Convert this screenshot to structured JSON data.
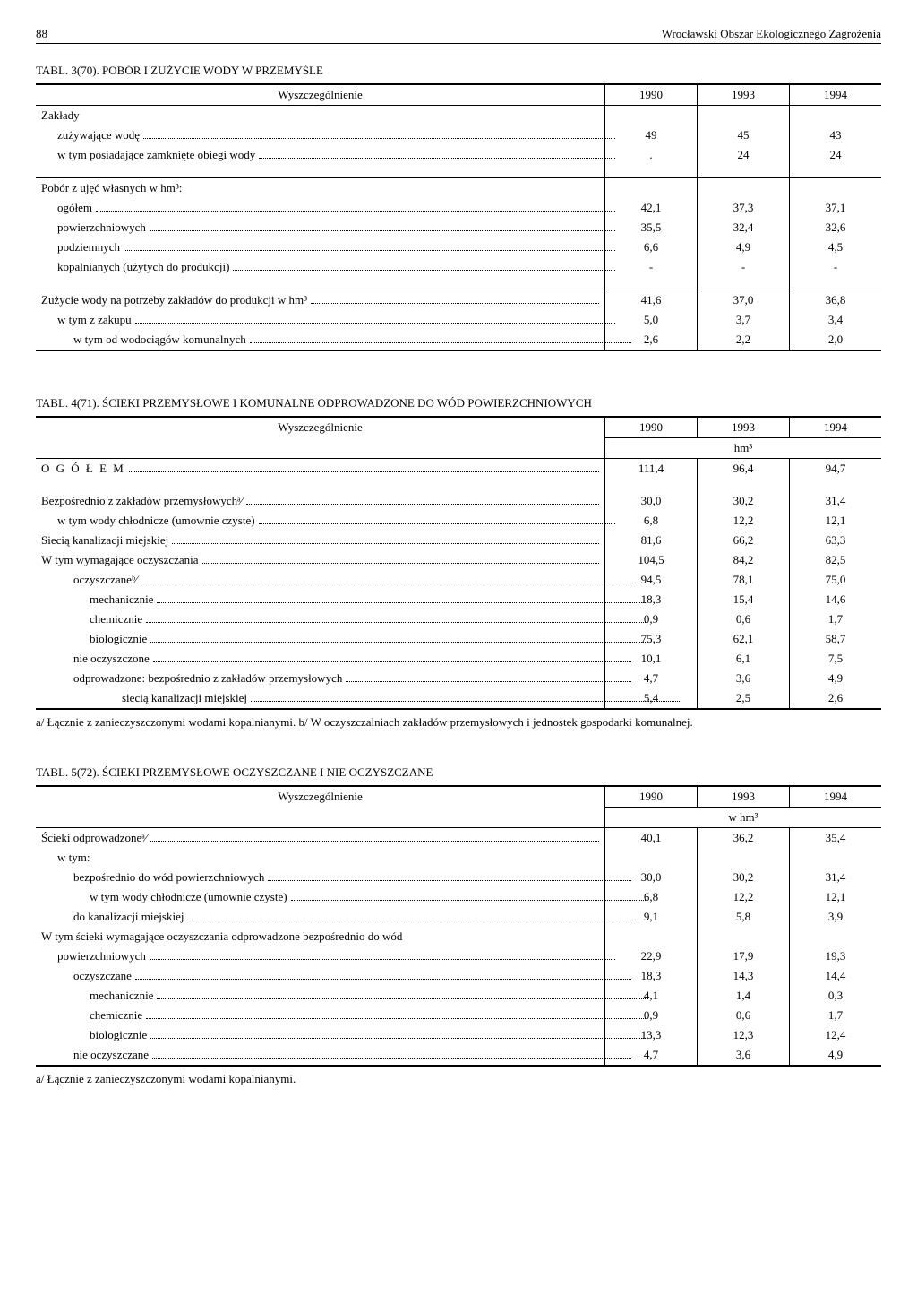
{
  "header": {
    "page_num": "88",
    "title": "Wrocławski Obszar Ekologicznego Zagrożenia"
  },
  "table1": {
    "caption": "TABL. 3(70). POBÓR I ZUŻYCIE WODY W PRZEMYŚLE",
    "col_label": "Wyszczególnienie",
    "years": [
      "1990",
      "1993",
      "1994"
    ],
    "rows": [
      {
        "label": "Zakłady",
        "indent": 0,
        "vals": [
          "",
          "",
          ""
        ],
        "nodots": true
      },
      {
        "label": "zużywające wodę",
        "indent": 1,
        "vals": [
          "49",
          "45",
          "43"
        ]
      },
      {
        "label": "w tym posiadające zamknięte obiegi wody",
        "indent": 1,
        "vals": [
          ".",
          "24",
          "24"
        ]
      },
      {
        "spacer": true
      },
      {
        "label": "Pobór z ujęć własnych w hm³:",
        "indent": 0,
        "vals": [
          "",
          "",
          ""
        ],
        "nodots": true,
        "section": true
      },
      {
        "label": "ogółem",
        "indent": 1,
        "vals": [
          "42,1",
          "37,3",
          "37,1"
        ]
      },
      {
        "label": "powierzchniowych",
        "indent": 1,
        "vals": [
          "35,5",
          "32,4",
          "32,6"
        ]
      },
      {
        "label": "podziemnych",
        "indent": 1,
        "vals": [
          "6,6",
          "4,9",
          "4,5"
        ]
      },
      {
        "label": "kopalnianych (użytych do produkcji)",
        "indent": 1,
        "vals": [
          "-",
          "-",
          "-"
        ]
      },
      {
        "spacer": true
      },
      {
        "label": "Zużycie wody na potrzeby zakładów do produkcji w hm³",
        "indent": 0,
        "vals": [
          "41,6",
          "37,0",
          "36,8"
        ],
        "section": true
      },
      {
        "label": "w tym z zakupu",
        "indent": 1,
        "vals": [
          "5,0",
          "3,7",
          "3,4"
        ]
      },
      {
        "label": "w tym od wodociągów komunalnych",
        "indent": 2,
        "vals": [
          "2,6",
          "2,2",
          "2,0"
        ]
      }
    ]
  },
  "table2": {
    "caption": "TABL. 4(71). ŚCIEKI PRZEMYSŁOWE I KOMUNALNE ODPROWADZONE DO WÓD POWIERZCHNIOWYCH",
    "col_label": "Wyszczególnienie",
    "years": [
      "1990",
      "1993",
      "1994"
    ],
    "unit": "hm³",
    "rows": [
      {
        "label": "O G Ó Ł E M",
        "indent": 0,
        "vals": [
          "111,4",
          "96,4",
          "94,7"
        ],
        "ogolem": true
      },
      {
        "spacer": true
      },
      {
        "label": "Bezpośrednio z zakładów przemysłowychᵃ⁄",
        "indent": 0,
        "vals": [
          "30,0",
          "30,2",
          "31,4"
        ]
      },
      {
        "label": "w tym wody chłodnicze (umownie czyste)",
        "indent": 1,
        "vals": [
          "6,8",
          "12,2",
          "12,1"
        ]
      },
      {
        "label": "Siecią kanalizacji miejskiej",
        "indent": 0,
        "vals": [
          "81,6",
          "66,2",
          "63,3"
        ]
      },
      {
        "label": "W tym wymagające oczyszczania",
        "indent": 0,
        "vals": [
          "104,5",
          "84,2",
          "82,5"
        ]
      },
      {
        "label": "oczyszczaneᵇ⁄",
        "indent": 2,
        "vals": [
          "94,5",
          "78,1",
          "75,0"
        ]
      },
      {
        "label": "mechanicznie",
        "indent": 3,
        "vals": [
          "18,3",
          "15,4",
          "14,6"
        ]
      },
      {
        "label": "chemicznie",
        "indent": 3,
        "vals": [
          "0,9",
          "0,6",
          "1,7"
        ]
      },
      {
        "label": "biologicznie",
        "indent": 3,
        "vals": [
          "75,3",
          "62,1",
          "58,7"
        ]
      },
      {
        "label": "nie oczyszczone",
        "indent": 2,
        "vals": [
          "10,1",
          "6,1",
          "7,5"
        ]
      },
      {
        "label": "odprowadzone: bezpośrednio z zakładów przemysłowych",
        "indent": 2,
        "vals": [
          "4,7",
          "3,6",
          "4,9"
        ]
      },
      {
        "label": "siecią kanalizacji miejskiej",
        "indent": 5,
        "vals": [
          "5,4",
          "2,5",
          "2,6"
        ]
      }
    ],
    "footnote": "a/ Łącznie z zanieczyszczonymi wodami kopalnianymi.   b/ W oczyszczalniach zakładów przemysłowych i jednostek gospodarki komunalnej."
  },
  "table3": {
    "caption": "TABL. 5(72). ŚCIEKI PRZEMYSŁOWE OCZYSZCZANE I NIE OCZYSZCZANE",
    "col_label": "Wyszczególnienie",
    "years": [
      "1990",
      "1993",
      "1994"
    ],
    "unit": "w hm³",
    "rows": [
      {
        "label": "Ścieki odprowadzoneᵃ⁄",
        "indent": 0,
        "vals": [
          "40,1",
          "36,2",
          "35,4"
        ]
      },
      {
        "label": "w tym:",
        "indent": 1,
        "vals": [
          "",
          "",
          ""
        ],
        "nodots": true
      },
      {
        "label": "bezpośrednio do wód powierzchniowych",
        "indent": 2,
        "vals": [
          "30,0",
          "30,2",
          "31,4"
        ]
      },
      {
        "label": "w tym wody chłodnicze (umownie czyste)",
        "indent": 3,
        "vals": [
          "6,8",
          "12,2",
          "12,1"
        ]
      },
      {
        "label": "do kanalizacji miejskiej",
        "indent": 2,
        "vals": [
          "9,1",
          "5,8",
          "3,9"
        ]
      },
      {
        "label": "W tym ścieki wymagające oczyszczania odprowadzone bezpośrednio do wód",
        "indent": 0,
        "vals": [
          "",
          "",
          ""
        ],
        "nodots": true
      },
      {
        "label": "powierzchniowych",
        "indent": 1,
        "vals": [
          "22,9",
          "17,9",
          "19,3"
        ]
      },
      {
        "label": "oczyszczane",
        "indent": 2,
        "vals": [
          "18,3",
          "14,3",
          "14,4"
        ]
      },
      {
        "label": "mechanicznie",
        "indent": 3,
        "vals": [
          "4,1",
          "1,4",
          "0,3"
        ]
      },
      {
        "label": "chemicznie",
        "indent": 3,
        "vals": [
          "0,9",
          "0,6",
          "1,7"
        ]
      },
      {
        "label": "biologicznie",
        "indent": 3,
        "vals": [
          "13,3",
          "12,3",
          "12,4"
        ]
      },
      {
        "label": "nie oczyszczane",
        "indent": 2,
        "vals": [
          "4,7",
          "3,6",
          "4,9"
        ]
      }
    ],
    "footnote": "a/ Łącznie z zanieczyszczonymi wodami kopalnianymi."
  }
}
